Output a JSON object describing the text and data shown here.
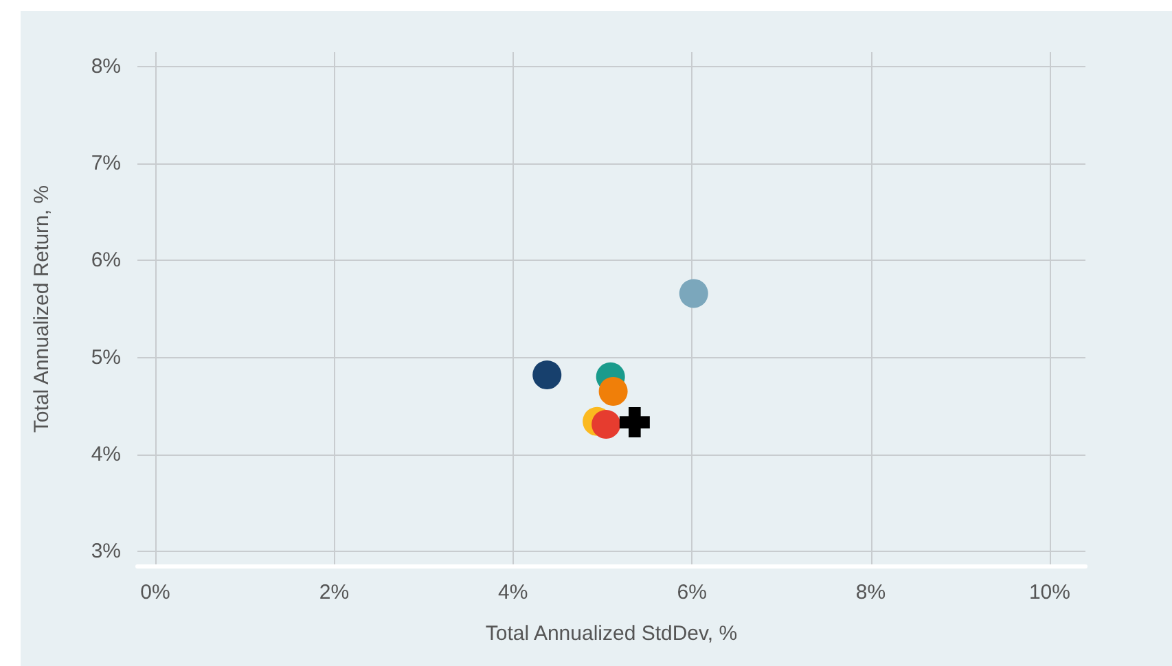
{
  "chart_data": {
    "type": "scatter",
    "xlabel": "Total Annualized StdDev, %",
    "ylabel": "Total Annualized Return, %",
    "xlim": [
      -0.2,
      10.4
    ],
    "ylim": [
      2.85,
      8.15
    ],
    "xticks": [
      {
        "value": 0,
        "label": "0%"
      },
      {
        "value": 2,
        "label": "2%"
      },
      {
        "value": 4,
        "label": "4%"
      },
      {
        "value": 6,
        "label": "6%"
      },
      {
        "value": 8,
        "label": "8%"
      },
      {
        "value": 10,
        "label": "10%"
      }
    ],
    "yticks": [
      {
        "value": 3,
        "label": "3%"
      },
      {
        "value": 4,
        "label": "4%"
      },
      {
        "value": 5,
        "label": "5%"
      },
      {
        "value": 6,
        "label": "6%"
      },
      {
        "value": 7,
        "label": "7%"
      },
      {
        "value": 8,
        "label": "8%"
      }
    ],
    "grid": true,
    "marker": "circle",
    "series": [
      {
        "color": "#7ba7bc",
        "x": [
          6.02
        ],
        "values": [
          5.66
        ]
      },
      {
        "color": "#17406d",
        "x": [
          4.38
        ],
        "values": [
          4.82
        ]
      },
      {
        "color": "#1a9b8c",
        "x": [
          5.09
        ],
        "values": [
          4.8
        ]
      },
      {
        "color": "#f07f09",
        "x": [
          5.12
        ],
        "values": [
          4.65
        ]
      },
      {
        "color": "#fbb91f",
        "x": [
          4.94
        ],
        "values": [
          4.34
        ]
      },
      {
        "color": "#e63c2f",
        "x": [
          5.04
        ],
        "values": [
          4.31
        ]
      },
      {
        "color": "#000000",
        "x": [
          5.36
        ],
        "values": [
          4.33
        ],
        "marker": "cross"
      }
    ]
  }
}
